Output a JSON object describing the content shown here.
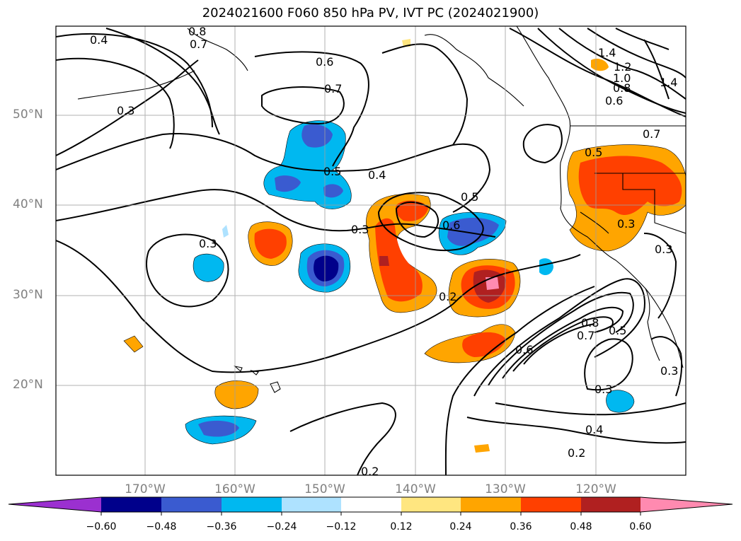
{
  "title": "2024021600 F060 850 hPa PV, IVT PC (2024021900)",
  "axes": {
    "lat_labels": [
      "50°N",
      "40°N",
      "30°N",
      "20°N"
    ],
    "lon_labels": [
      "170°W",
      "160°W",
      "150°W",
      "140°W",
      "130°W",
      "120°W"
    ]
  },
  "contour_labels": [
    "0.4",
    "0.8",
    "0.7",
    "0.3",
    "0.6",
    "0.7",
    "0.5",
    "0.4",
    "0.5",
    "0.3",
    "0.6",
    "0.3",
    "0.2",
    "0.5",
    "0.3",
    "0.3",
    "1.4",
    "1.2",
    "1.0",
    "0.8",
    "0.6",
    "1.4",
    "0.7",
    "0.6",
    "0.7",
    "0.8",
    "0.5",
    "0.3",
    "0.4",
    "0.2",
    "0.3",
    "0.2"
  ],
  "colorbar": {
    "tick_labels": [
      "−0.60",
      "−0.48",
      "−0.36",
      "−0.24",
      "−0.12",
      "0.12",
      "0.24",
      "0.36",
      "0.48",
      "0.60"
    ],
    "colors": [
      "#9b30d0",
      "#00008b",
      "#3a5bd0",
      "#00b8f0",
      "#aee2ff",
      "#ffffff",
      "#ffe680",
      "#ffa500",
      "#ff4000",
      "#b02020",
      "#ff8ab0"
    ]
  }
}
